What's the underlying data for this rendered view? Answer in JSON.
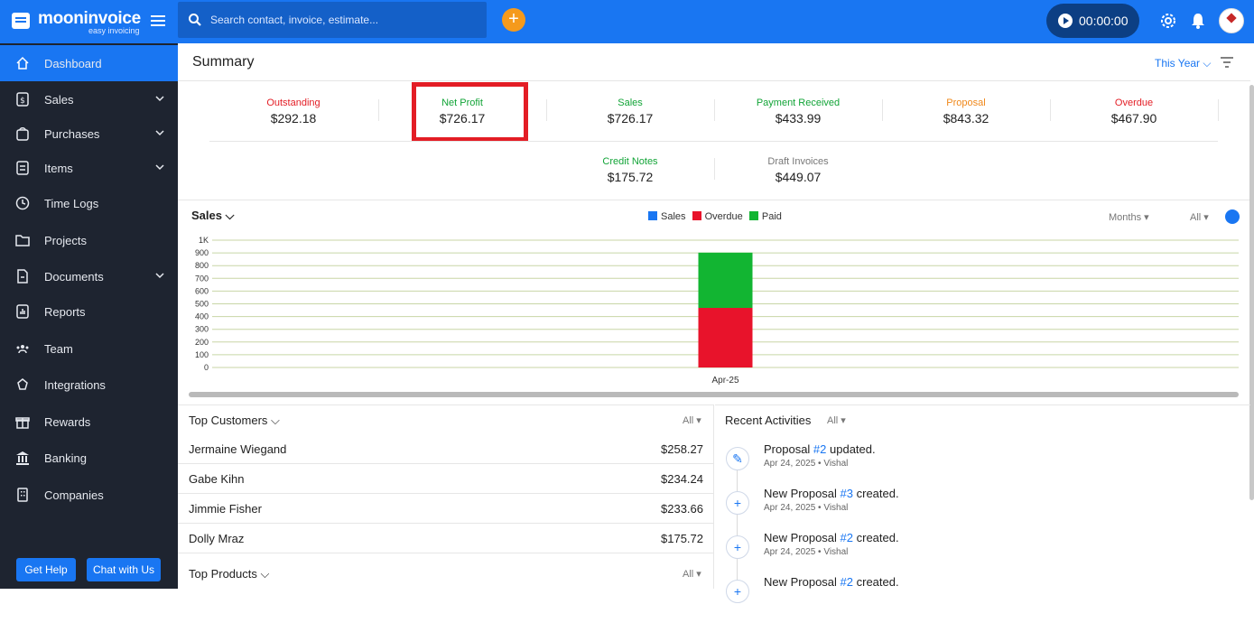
{
  "brand": {
    "name": "mooninvoice",
    "tagline": "easy invoicing"
  },
  "search": {
    "placeholder": "Search contact, invoice, estimate..."
  },
  "timer": {
    "value": "00:00:00"
  },
  "sidebar": {
    "items": [
      {
        "label": "Dashboard",
        "icon": "home-icon",
        "active": true
      },
      {
        "label": "Sales",
        "icon": "dollar-doc-icon",
        "expandable": true
      },
      {
        "label": "Purchases",
        "icon": "bag-icon",
        "expandable": true
      },
      {
        "label": "Items",
        "icon": "list-box-icon",
        "expandable": true
      },
      {
        "label": "Time Logs",
        "icon": "clock-icon"
      },
      {
        "label": "Projects",
        "icon": "folder-icon"
      },
      {
        "label": "Documents",
        "icon": "document-icon",
        "expandable": true
      },
      {
        "label": "Reports",
        "icon": "report-icon"
      },
      {
        "label": "Team",
        "icon": "team-icon"
      },
      {
        "label": "Integrations",
        "icon": "integrations-icon"
      },
      {
        "label": "Rewards",
        "icon": "gift-icon"
      },
      {
        "label": "Banking",
        "icon": "bank-icon"
      },
      {
        "label": "Companies",
        "icon": "building-icon"
      }
    ],
    "help_label": "Get Help",
    "chat_label": "Chat with Us"
  },
  "summary": {
    "title": "Summary",
    "period": "This Year",
    "stats": [
      {
        "label": "Outstanding",
        "value": "$292.18",
        "color": "#e31d25"
      },
      {
        "label": "Net Profit",
        "value": "$726.17",
        "color": "#12a437"
      },
      {
        "label": "Sales",
        "value": "$726.17",
        "color": "#12a437"
      },
      {
        "label": "Payment Received",
        "value": "$433.99",
        "color": "#12a437"
      },
      {
        "label": "Proposal",
        "value": "$843.32",
        "color": "#f0881a"
      },
      {
        "label": "Overdue",
        "value": "$467.90",
        "color": "#e31d25"
      }
    ],
    "stats2": [
      {
        "label": "Credit Notes",
        "value": "$175.72",
        "color": "#12a437"
      },
      {
        "label": "Draft Invoices",
        "value": "$449.07",
        "color": "#777777"
      }
    ]
  },
  "sales_chart": {
    "title": "Sales",
    "months_label": "Months",
    "all_label": "All",
    "legend": [
      {
        "name": "Sales",
        "color": "#1976f2"
      },
      {
        "name": "Overdue",
        "color": "#e8132b"
      },
      {
        "name": "Paid",
        "color": "#12b532"
      }
    ]
  },
  "chart_data": {
    "type": "bar",
    "categories": [
      "Apr-25"
    ],
    "series": [
      {
        "name": "Overdue",
        "values": [
          468
        ]
      },
      {
        "name": "Paid",
        "values": [
          434
        ]
      }
    ],
    "stacked": true,
    "ylim": [
      0,
      1000
    ],
    "yticks": [
      "1K",
      "900",
      "800",
      "700",
      "600",
      "500",
      "400",
      "300",
      "200",
      "100",
      "0"
    ],
    "grid": true,
    "legend_position": "top"
  },
  "top_customers": {
    "title": "Top Customers",
    "filter": "All",
    "rows": [
      {
        "name": "Jermaine Wiegand",
        "amount": "$258.27"
      },
      {
        "name": "Gabe Kihn",
        "amount": "$234.24"
      },
      {
        "name": "Jimmie Fisher",
        "amount": "$233.66"
      },
      {
        "name": "Dolly Mraz",
        "amount": "$175.72"
      }
    ]
  },
  "top_products": {
    "title": "Top Products",
    "filter": "All"
  },
  "recent_activities": {
    "title": "Recent Activities",
    "filter": "All",
    "items": [
      {
        "pre": "Proposal ",
        "num": "#2",
        "post": " updated.",
        "meta": "Apr 24, 2025 • Vishal",
        "icon": "pencil-icon"
      },
      {
        "pre": "New Proposal ",
        "num": "#3",
        "post": " created.",
        "meta": "Apr 24, 2025 • Vishal",
        "icon": "plus-icon"
      },
      {
        "pre": "New Proposal ",
        "num": "#2",
        "post": " created.",
        "meta": "Apr 24, 2025 • Vishal",
        "icon": "plus-icon"
      },
      {
        "pre": "New Proposal ",
        "num": "#2",
        "post": " created.",
        "meta": "",
        "icon": "plus-icon"
      }
    ]
  }
}
